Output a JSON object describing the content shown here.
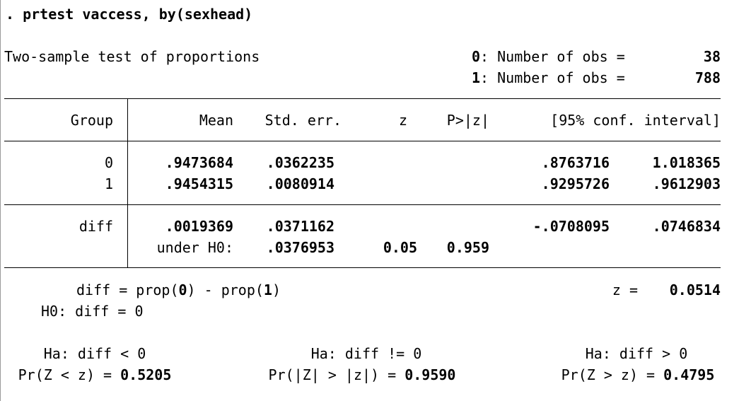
{
  "command": ". prtest vaccess, by(sexhead)",
  "header": {
    "title": "Two-sample test of proportions",
    "obs": [
      {
        "group": "0",
        "label": ": Number of obs =",
        "value": "38"
      },
      {
        "group": "1",
        "label": ": Number of obs =",
        "value": "788"
      }
    ]
  },
  "table": {
    "columns": [
      "Group",
      "Mean",
      "Std. err.",
      "z",
      "P>|z|",
      "[95% conf. interval]"
    ],
    "rows": [
      {
        "group": "0",
        "mean": ".9473684",
        "se": ".0362235",
        "lo": ".8763716",
        "hi": "1.018365"
      },
      {
        "group": "1",
        "mean": ".9454315",
        "se": ".0080914",
        "lo": ".9295726",
        "hi": ".9612903"
      }
    ],
    "diff": {
      "group": "diff",
      "mean": ".0019369",
      "se": ".0371162",
      "lo": "-.0708095",
      "hi": ".0746834"
    },
    "h0": {
      "label": "under H0:",
      "se": ".0376953",
      "z": "0.05",
      "p": "0.959"
    }
  },
  "footer": {
    "diff_def_a": "diff = prop(",
    "diff_def_g0": "0",
    "diff_def_b": ") - prop(",
    "diff_def_g1": "1",
    "diff_def_c": ")",
    "z_label": "z =",
    "z_value": "0.0514",
    "h0": "H0: diff = 0",
    "ha": [
      {
        "hyp": "Ha: diff < 0",
        "pr": "Pr(Z < z) = ",
        "p": "0.5205"
      },
      {
        "hyp": "Ha: diff != 0",
        "pr": "Pr(|Z| > |z|) = ",
        "p": "0.9590"
      },
      {
        "hyp": "Ha: diff > 0",
        "pr": "Pr(Z > z) = ",
        "p": "0.4795"
      }
    ]
  }
}
